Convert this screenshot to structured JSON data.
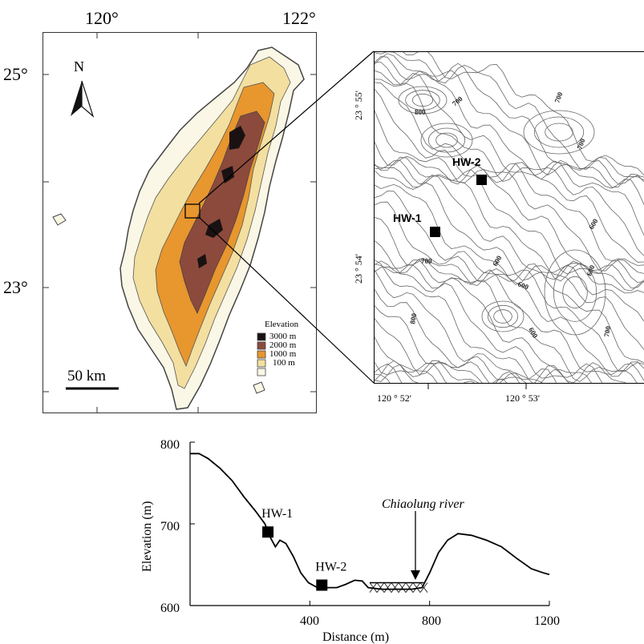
{
  "map": {
    "lon_labels": [
      "120°",
      "122°"
    ],
    "lat_labels": [
      "25°",
      "23°"
    ],
    "north_label": "N",
    "scale_label": "50 km",
    "legend": {
      "title": "Elevation",
      "items": [
        {
          "label": "3000 m",
          "color": "#1a1212"
        },
        {
          "label": "2000 m",
          "color": "#8c4a3c"
        },
        {
          "label": "1000 m",
          "color": "#e8962e"
        },
        {
          "label": "100 m",
          "color": "#f3dfa0"
        }
      ],
      "base_color": "#fbf7e6"
    }
  },
  "inset": {
    "lat_labels": [
      "23 ° 55'",
      "23 ° 54'"
    ],
    "lon_labels": [
      "120 ° 52'",
      "120 ° 53'"
    ],
    "sites": [
      {
        "name": "HW-2"
      },
      {
        "name": "HW-1"
      }
    ],
    "contour_labels": [
      "700",
      "700",
      "800",
      "700",
      "600",
      "600",
      "600",
      "700",
      "800",
      "600",
      "600",
      "700"
    ]
  },
  "profile": {
    "xlabel": "Distance (m)",
    "ylabel": "Elevation (m)",
    "x_ticks": [
      "400",
      "800",
      "1200"
    ],
    "y_ticks": [
      "800",
      "700",
      "600"
    ],
    "river_label": "Chiaolung river",
    "sites": [
      {
        "name": "HW-1",
        "distance": 260,
        "elevation": 690
      },
      {
        "name": "HW-2",
        "distance": 440,
        "elevation": 625
      }
    ],
    "xlim": [
      0,
      1200
    ],
    "ylim": [
      600,
      800
    ],
    "profile_points": [
      [
        0,
        786
      ],
      [
        30,
        786
      ],
      [
        60,
        780
      ],
      [
        100,
        768
      ],
      [
        140,
        753
      ],
      [
        180,
        733
      ],
      [
        220,
        715
      ],
      [
        250,
        700
      ],
      [
        270,
        682
      ],
      [
        285,
        672
      ],
      [
        300,
        680
      ],
      [
        320,
        676
      ],
      [
        345,
        660
      ],
      [
        370,
        640
      ],
      [
        395,
        628
      ],
      [
        420,
        623
      ],
      [
        450,
        622
      ],
      [
        490,
        622
      ],
      [
        520,
        626
      ],
      [
        550,
        631
      ],
      [
        575,
        630
      ],
      [
        595,
        622
      ],
      [
        640,
        620
      ],
      [
        700,
        620
      ],
      [
        740,
        620
      ],
      [
        775,
        622
      ],
      [
        800,
        640
      ],
      [
        830,
        665
      ],
      [
        860,
        680
      ],
      [
        895,
        688
      ],
      [
        940,
        686
      ],
      [
        990,
        680
      ],
      [
        1040,
        672
      ],
      [
        1090,
        658
      ],
      [
        1140,
        645
      ],
      [
        1180,
        640
      ],
      [
        1200,
        638
      ]
    ]
  }
}
